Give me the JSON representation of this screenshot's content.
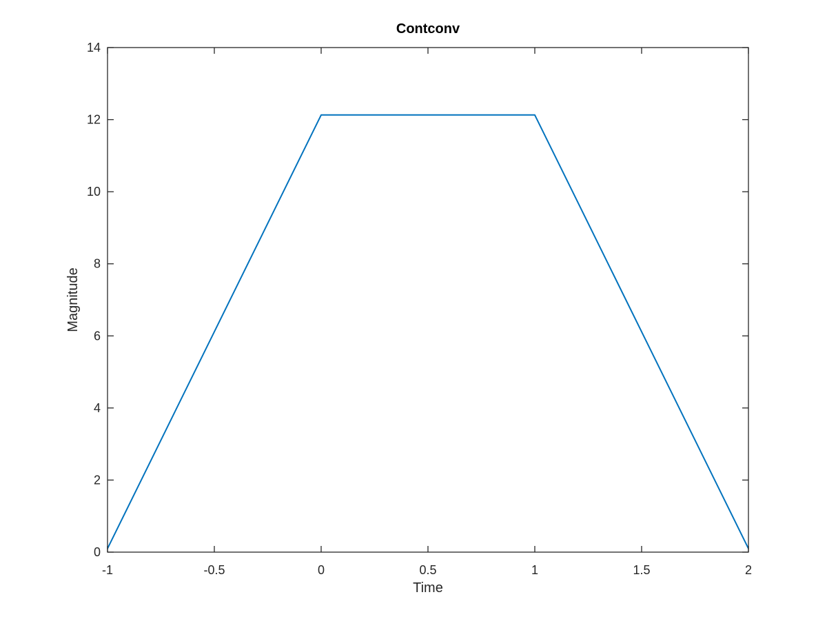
{
  "chart_data": {
    "type": "line",
    "title": "Contconv",
    "xlabel": "Time",
    "ylabel": "Magnitude",
    "xlim": [
      -1,
      2
    ],
    "ylim": [
      0,
      14
    ],
    "x_ticks": [
      -1,
      -0.5,
      0,
      0.5,
      1,
      1.5,
      2
    ],
    "x_tick_labels": [
      "-1",
      "-0.5",
      "0",
      "0.5",
      "1",
      "1.5",
      "2"
    ],
    "y_ticks": [
      0,
      2,
      4,
      6,
      8,
      10,
      12,
      14
    ],
    "y_tick_labels": [
      "0",
      "2",
      "4",
      "6",
      "8",
      "10",
      "12",
      "14"
    ],
    "grid": false,
    "legend": "none",
    "series": [
      {
        "name": "Contconv",
        "color": "#0072BD",
        "x": [
          -1,
          0,
          1,
          2
        ],
        "y": [
          0.1,
          12.13,
          12.13,
          0.1
        ]
      }
    ]
  },
  "colors": {
    "axes": "#262626",
    "background": "#ffffff"
  }
}
